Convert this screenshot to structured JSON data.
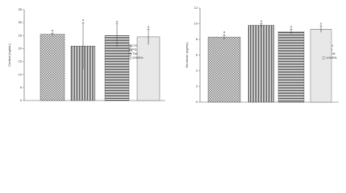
{
  "chart_data": [
    {
      "type": "bar",
      "y_label": "Cortisol (ng/mL)",
      "categories": [
        "CON",
        "PDS",
        "TMDN",
        "10MDN"
      ],
      "values": [
        25.5,
        21,
        25,
        24.5
      ],
      "errors": [
        0.5,
        9,
        4.5,
        3
      ],
      "annotations": [
        "a",
        "a",
        "a",
        "a"
      ],
      "ylim": [
        0,
        35
      ],
      "yticks": [
        0,
        5,
        10,
        15,
        20,
        25,
        30,
        35
      ]
    },
    {
      "type": "bar",
      "y_label": "Serotonin (ng/mL)",
      "categories": [
        "CON",
        "PDS",
        "TMDN",
        "10MDN"
      ],
      "values": [
        8.3,
        9.8,
        9.0,
        9.3
      ],
      "errors": [
        0.3,
        0.2,
        0.3,
        0.4
      ],
      "annotations": [
        "a",
        "a",
        "a",
        "a"
      ],
      "ylim": [
        0,
        12
      ],
      "yticks": [
        0,
        2,
        4,
        6,
        8,
        10,
        12
      ]
    }
  ]
}
